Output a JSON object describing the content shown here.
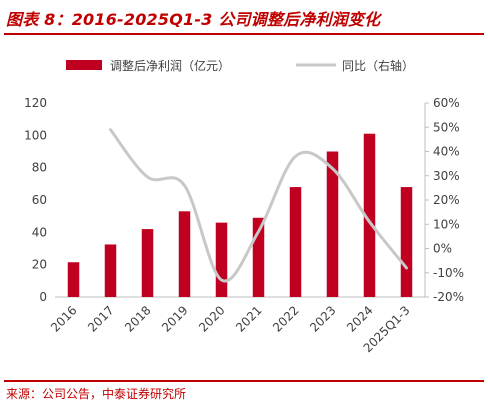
{
  "figure": {
    "title": "图表 8：2016-2025Q1-3 公司调整后净利润变化",
    "source": "来源：公司公告，中泰证券研究所"
  },
  "colors": {
    "bar": "#c00021",
    "line": "#c8c8c8",
    "title": "#c00000",
    "axis": "#bfbfbf",
    "text": "#404040"
  },
  "chart_data": {
    "type": "bar",
    "title": "",
    "xlabel": "",
    "ylabel": "",
    "categories": [
      "2016",
      "2017",
      "2018",
      "2019",
      "2020",
      "2021",
      "2022",
      "2023",
      "2024",
      "2025Q1-3"
    ],
    "series": [
      {
        "name": "调整后净利润（亿元）",
        "type": "bar",
        "axis": "left",
        "values": [
          21.5,
          32.5,
          42,
          53,
          46,
          49,
          68,
          90,
          101,
          68
        ]
      },
      {
        "name": "同比（右轴）",
        "type": "line",
        "axis": "right",
        "values": [
          null,
          49,
          29.5,
          26,
          -13,
          7,
          38,
          33,
          11,
          -8
        ]
      }
    ],
    "y_left": {
      "range": [
        0,
        120
      ],
      "ticks": [
        "0",
        "20",
        "40",
        "60",
        "80",
        "100",
        "120"
      ]
    },
    "y_right": {
      "range": [
        -20,
        60
      ],
      "ticks": [
        "-20%",
        "-10%",
        "0%",
        "10%",
        "20%",
        "30%",
        "40%",
        "50%",
        "60%"
      ]
    },
    "grid": false,
    "legend": "top"
  }
}
